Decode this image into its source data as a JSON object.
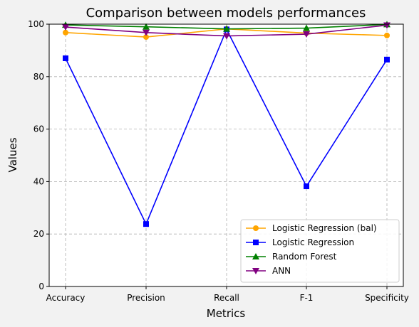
{
  "chart_data": {
    "type": "line",
    "title": "Comparison between models performances",
    "xlabel": "Metrics",
    "ylabel": "Values",
    "categories": [
      "Accuracy",
      "Precision",
      "Recall",
      "F-1",
      "Specificity"
    ],
    "ylim": [
      0,
      100
    ],
    "yticks": [
      0,
      20,
      40,
      60,
      80,
      100
    ],
    "grid": true,
    "legend_position": "bottom-right",
    "series": [
      {
        "name": "Logistic Regression (bal)",
        "color": "#ffa500",
        "marker": "circle",
        "values": [
          96.8,
          95.1,
          98.2,
          96.6,
          95.7
        ]
      },
      {
        "name": "Logistic Regression",
        "color": "#0000ff",
        "marker": "square",
        "values": [
          87.0,
          23.8,
          98.0,
          38.2,
          86.5
        ]
      },
      {
        "name": "Random Forest",
        "color": "#008000",
        "marker": "triangle-up",
        "values": [
          99.7,
          99.0,
          98.2,
          98.5,
          99.9
        ]
      },
      {
        "name": "ANN",
        "color": "#800080",
        "marker": "triangle-down",
        "values": [
          98.9,
          96.8,
          95.5,
          96.2,
          99.6
        ]
      }
    ]
  }
}
